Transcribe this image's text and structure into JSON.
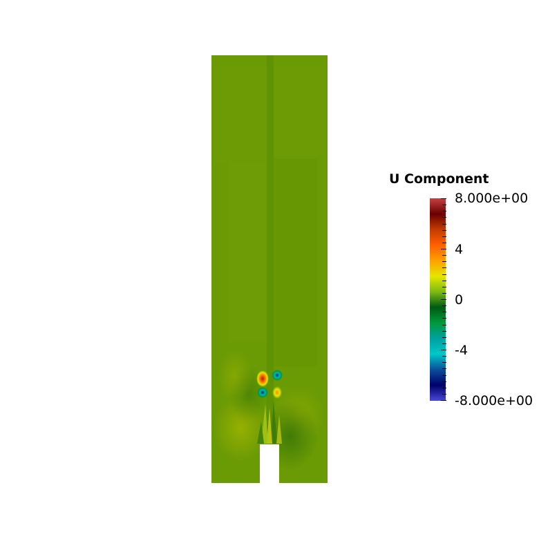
{
  "legend": {
    "title": "U Component",
    "labels": {
      "max": "8.000e+00",
      "p4": "4",
      "zero": "0",
      "m4": "-4",
      "min": "-8.000e+00"
    },
    "range": [
      -8,
      8
    ],
    "colormap": [
      "#4848d8",
      "#00006a",
      "#0a4f9a",
      "#00c8c8",
      "#00a0a0",
      "#009a3a",
      "#005a12",
      "#7cba14",
      "#e6e600",
      "#ffa000",
      "#ff6000",
      "#c23c00",
      "#6a0000",
      "#c84040"
    ]
  },
  "field": {
    "background_color": "#6a9a04",
    "channel_color": "#5e9206"
  }
}
